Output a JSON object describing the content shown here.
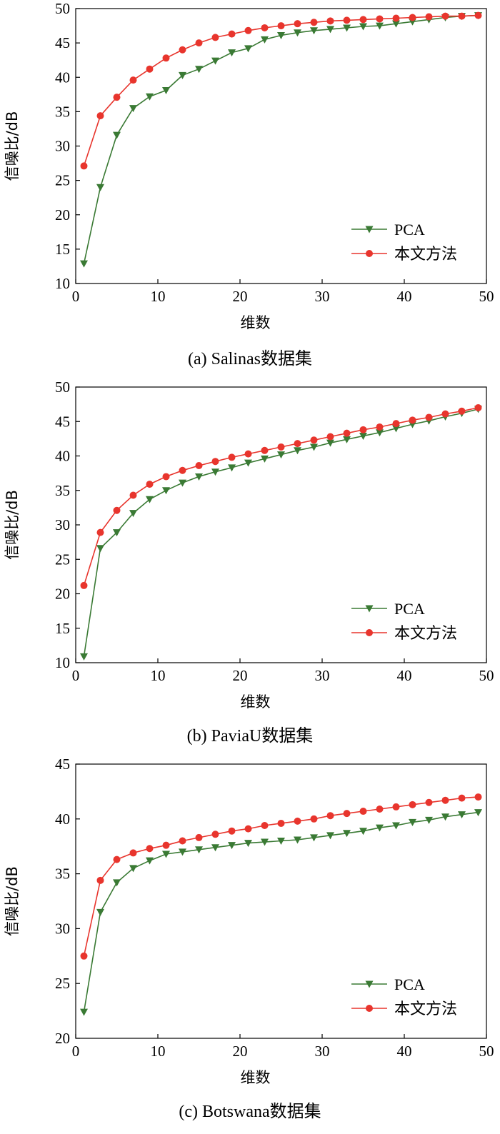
{
  "chart_data": [
    {
      "type": "line",
      "caption": "(a) Salinas数据集",
      "xlabel": "维数",
      "ylabel": "信噪比/dB",
      "xlim": [
        0,
        50
      ],
      "ylim": [
        10,
        50
      ],
      "xticks": [
        0,
        10,
        20,
        30,
        40,
        50
      ],
      "yticks": [
        10,
        15,
        20,
        25,
        30,
        35,
        40,
        45,
        50
      ],
      "legend_position": "bottom-right",
      "x": [
        1,
        3,
        5,
        7,
        9,
        11,
        13,
        15,
        17,
        19,
        21,
        23,
        25,
        27,
        29,
        31,
        33,
        35,
        37,
        39,
        41,
        43,
        45,
        47,
        49
      ],
      "series": [
        {
          "name": "PCA",
          "color": "#3a7a34",
          "marker": "triangle-down",
          "values": [
            12.9,
            24.0,
            31.6,
            35.5,
            37.2,
            38.1,
            40.3,
            41.2,
            42.4,
            43.6,
            44.2,
            45.5,
            46.1,
            46.5,
            46.8,
            47.0,
            47.2,
            47.4,
            47.5,
            47.8,
            48.1,
            48.4,
            48.7,
            48.9,
            49.0
          ]
        },
        {
          "name": "本文方法",
          "color": "#e8352d",
          "marker": "circle",
          "values": [
            27.1,
            34.4,
            37.1,
            39.6,
            41.2,
            42.8,
            44.0,
            45.0,
            45.8,
            46.3,
            46.8,
            47.2,
            47.5,
            47.8,
            48.0,
            48.2,
            48.3,
            48.4,
            48.5,
            48.6,
            48.7,
            48.8,
            48.9,
            48.9,
            49.0
          ]
        }
      ]
    },
    {
      "type": "line",
      "caption": "(b) PaviaU数据集",
      "xlabel": "维数",
      "ylabel": "信噪比/dB",
      "xlim": [
        0,
        50
      ],
      "ylim": [
        10,
        50
      ],
      "xticks": [
        0,
        10,
        20,
        30,
        40,
        50
      ],
      "yticks": [
        10,
        15,
        20,
        25,
        30,
        35,
        40,
        45,
        50
      ],
      "legend_position": "bottom-right",
      "x": [
        1,
        3,
        5,
        7,
        9,
        11,
        13,
        15,
        17,
        19,
        21,
        23,
        25,
        27,
        29,
        31,
        33,
        35,
        37,
        39,
        41,
        43,
        45,
        47,
        49
      ],
      "series": [
        {
          "name": "PCA",
          "color": "#3a7a34",
          "marker": "triangle-down",
          "values": [
            10.9,
            26.6,
            28.9,
            31.7,
            33.7,
            35.0,
            36.1,
            37.0,
            37.7,
            38.3,
            39.0,
            39.6,
            40.2,
            40.8,
            41.3,
            41.9,
            42.4,
            42.9,
            43.4,
            44.0,
            44.6,
            45.1,
            45.7,
            46.2,
            46.8
          ]
        },
        {
          "name": "本文方法",
          "color": "#e8352d",
          "marker": "circle",
          "values": [
            21.2,
            28.9,
            32.1,
            34.3,
            35.9,
            37.0,
            37.9,
            38.6,
            39.2,
            39.8,
            40.3,
            40.8,
            41.3,
            41.8,
            42.3,
            42.8,
            43.3,
            43.8,
            44.2,
            44.7,
            45.2,
            45.6,
            46.1,
            46.5,
            47.0
          ]
        }
      ]
    },
    {
      "type": "line",
      "caption": "(c) Botswana数据集",
      "xlabel": "维数",
      "ylabel": "信噪比/dB",
      "xlim": [
        0,
        50
      ],
      "ylim": [
        20,
        45
      ],
      "xticks": [
        0,
        10,
        20,
        30,
        40,
        50
      ],
      "yticks": [
        20,
        25,
        30,
        35,
        40,
        45
      ],
      "legend_position": "bottom-right",
      "x": [
        1,
        3,
        5,
        7,
        9,
        11,
        13,
        15,
        17,
        19,
        21,
        23,
        25,
        27,
        29,
        31,
        33,
        35,
        37,
        39,
        41,
        43,
        45,
        47,
        49
      ],
      "series": [
        {
          "name": "PCA",
          "color": "#3a7a34",
          "marker": "triangle-down",
          "values": [
            22.4,
            31.5,
            34.2,
            35.5,
            36.2,
            36.8,
            37.0,
            37.2,
            37.4,
            37.6,
            37.8,
            37.9,
            38.0,
            38.1,
            38.3,
            38.5,
            38.7,
            38.9,
            39.2,
            39.4,
            39.7,
            39.9,
            40.2,
            40.4,
            40.6
          ]
        },
        {
          "name": "本文方法",
          "color": "#e8352d",
          "marker": "circle",
          "values": [
            27.5,
            34.4,
            36.3,
            36.9,
            37.3,
            37.6,
            38.0,
            38.3,
            38.6,
            38.9,
            39.1,
            39.4,
            39.6,
            39.8,
            40.0,
            40.3,
            40.5,
            40.7,
            40.9,
            41.1,
            41.3,
            41.5,
            41.7,
            41.9,
            42.0
          ]
        }
      ]
    }
  ]
}
